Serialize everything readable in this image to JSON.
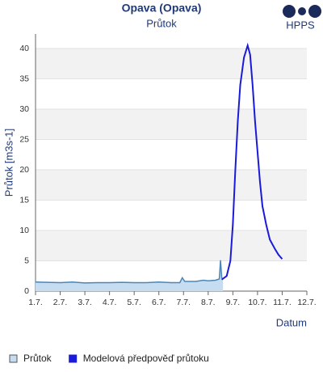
{
  "chart_data": {
    "type": "line",
    "title": "Opava (Opava)",
    "subtitle": "Průtok",
    "logo": "HPPS",
    "xlabel": "Datum",
    "ylabel": "Průtok [m3s-1]",
    "xlim": [
      1,
      12
    ],
    "xticks": [
      {
        "value": 1,
        "label": "1.7."
      },
      {
        "value": 2,
        "label": "2.7."
      },
      {
        "value": 3,
        "label": "3.7."
      },
      {
        "value": 4,
        "label": "4.7."
      },
      {
        "value": 5,
        "label": "5.7."
      },
      {
        "value": 6,
        "label": "6.7."
      },
      {
        "value": 7,
        "label": "7.7."
      },
      {
        "value": 8,
        "label": "8.7."
      },
      {
        "value": 9,
        "label": "9.7."
      },
      {
        "value": 10,
        "label": "10.7."
      },
      {
        "value": 11,
        "label": "11.7."
      },
      {
        "value": 12,
        "label": "12.7."
      }
    ],
    "ylim": [
      0,
      42.4
    ],
    "yticks": [
      0,
      5,
      10,
      15,
      20,
      25,
      30,
      35,
      40
    ],
    "grid": "alternating-bands",
    "series": [
      {
        "name": "Průtok",
        "color": "#4a86b8",
        "fill": "#c6dcf0",
        "area": true,
        "x": [
          1,
          1.5,
          2,
          2.5,
          3,
          3.5,
          4,
          4.5,
          5,
          5.5,
          6,
          6.5,
          6.85,
          6.95,
          7.05,
          7.5,
          7.8,
          8,
          8.3,
          8.45,
          8.5,
          8.55,
          8.6
        ],
        "values": [
          1.5,
          1.45,
          1.4,
          1.5,
          1.35,
          1.4,
          1.4,
          1.45,
          1.4,
          1.4,
          1.5,
          1.4,
          1.4,
          2.2,
          1.6,
          1.6,
          1.8,
          1.7,
          1.8,
          2.0,
          5.1,
          2.2,
          2.0
        ]
      },
      {
        "name": "Modelová předpověď průtoku",
        "color": "#1a1adb",
        "fill": "#1a1adb",
        "area": false,
        "x": [
          8.55,
          8.75,
          8.9,
          9.0,
          9.1,
          9.2,
          9.3,
          9.45,
          9.6,
          9.7,
          9.8,
          9.9,
          10.0,
          10.1,
          10.2,
          10.35,
          10.5,
          10.7,
          10.85,
          11.0
        ],
        "values": [
          1.9,
          2.5,
          5,
          11,
          20,
          28,
          34,
          38.5,
          40.5,
          39,
          34,
          28,
          23,
          18,
          14,
          11,
          8.5,
          7,
          6,
          5.3
        ]
      }
    ]
  }
}
